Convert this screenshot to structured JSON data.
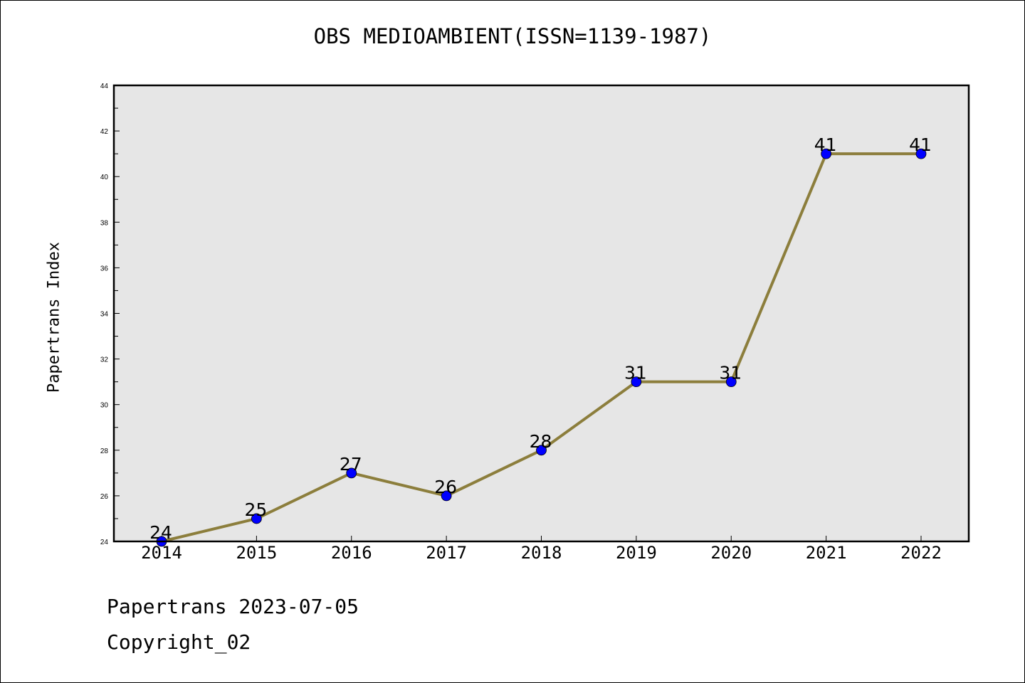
{
  "chart_data": {
    "type": "line",
    "title": "OBS MEDIOAMBIENT(ISSN=1139-1987)",
    "xlabel": "",
    "ylabel": "Papertrans Index",
    "categories": [
      "2014",
      "2015",
      "2016",
      "2017",
      "2018",
      "2019",
      "2020",
      "2021",
      "2022"
    ],
    "series": [
      {
        "values": [
          24,
          25,
          27,
          26,
          28,
          31,
          31,
          41,
          41
        ]
      }
    ],
    "data_labels": [
      "24",
      "25",
      "27",
      "26",
      "28",
      "31",
      "31",
      "41",
      "41"
    ],
    "yticks": [
      "24",
      "26",
      "28",
      "30",
      "32",
      "34",
      "36",
      "38",
      "40",
      "42",
      "44"
    ],
    "ylim": [
      24,
      44
    ],
    "grid": false,
    "colors": {
      "line": "#8c7e3c",
      "marker": "#0000ff",
      "plot_bg": "#e6e6e6"
    }
  },
  "footer": {
    "line1": "Papertrans 2023-07-05",
    "line2": "Copyright_02"
  }
}
